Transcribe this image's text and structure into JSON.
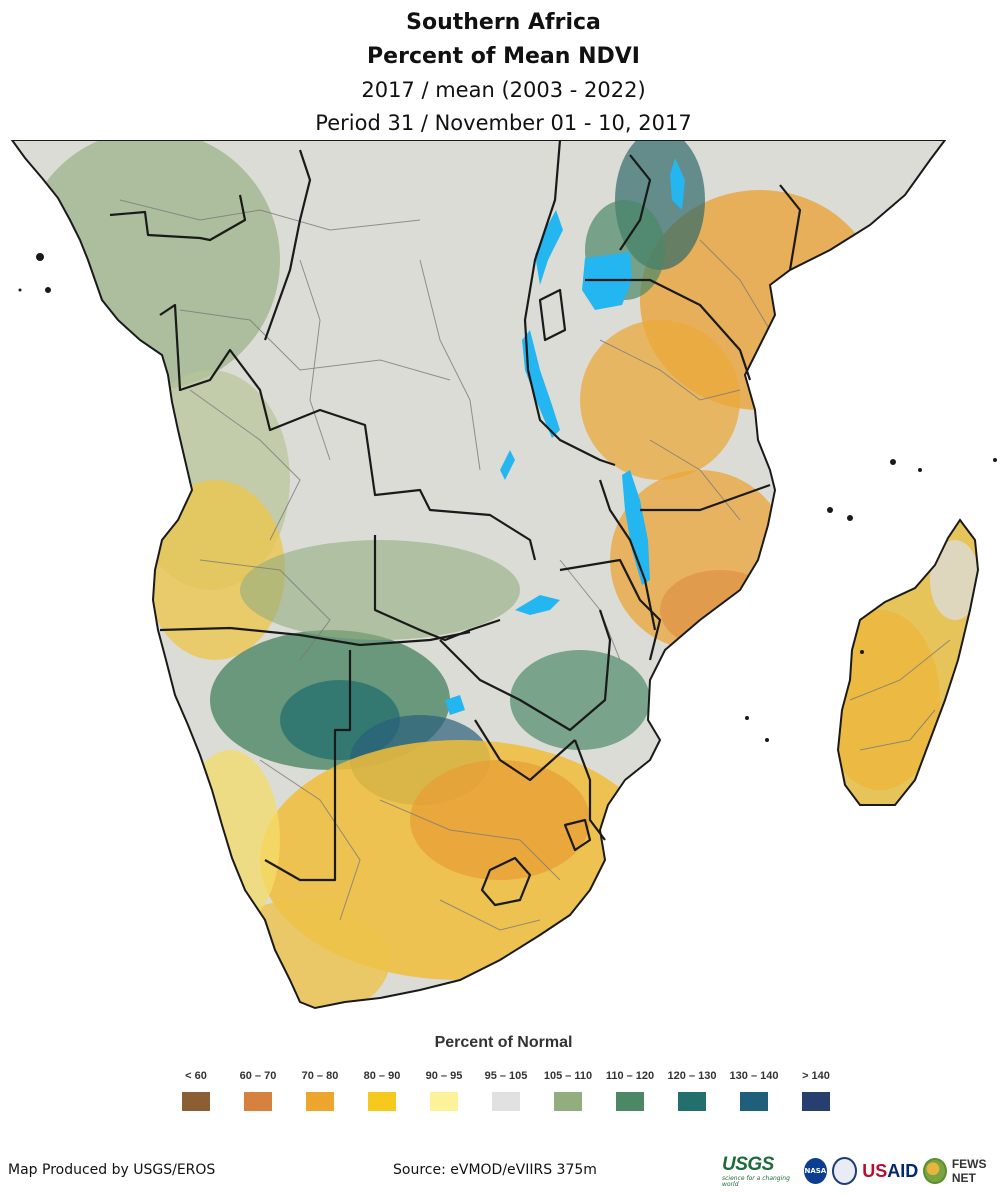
{
  "title": {
    "line1": "Southern Africa",
    "line2": "Percent of Mean NDVI",
    "line3": "2017 / mean (2003 - 2022)",
    "line4": "Period 31 / November 01 - 10, 2017"
  },
  "legend": {
    "title": "Percent of Normal",
    "items": [
      {
        "label": "< 60",
        "color": "#8b5e34"
      },
      {
        "label": "60 – 70",
        "color": "#d6823e"
      },
      {
        "label": "70 – 80",
        "color": "#eda52e"
      },
      {
        "label": "80 – 90",
        "color": "#f6c91e"
      },
      {
        "label": "90 – 95",
        "color": "#fbf29a"
      },
      {
        "label": "95 – 105",
        "color": "#e1e1e1"
      },
      {
        "label": "105 – 110",
        "color": "#93ae7e"
      },
      {
        "label": "110 – 120",
        "color": "#4c8766"
      },
      {
        "label": "120 – 130",
        "color": "#236f6e"
      },
      {
        "label": "130 – 140",
        "color": "#1f5f7c"
      },
      {
        "label": "> 140",
        "color": "#263f6e"
      }
    ]
  },
  "footer": {
    "produced_by": "Map Produced by USGS/EROS",
    "source": "Source: eVMOD/eVIIRS 375m"
  },
  "logos": {
    "usgs": "USGS",
    "usgs_tagline": "science for a changing world",
    "nasa": "NASA",
    "usaid_a": "US",
    "usaid_b": "AID",
    "fews": "FEWS NET"
  },
  "colors": {
    "water": "#24b6f0",
    "border": "#1a1a1a",
    "admin": "#6e6e6e",
    "neutral": "#dcdcd6"
  }
}
